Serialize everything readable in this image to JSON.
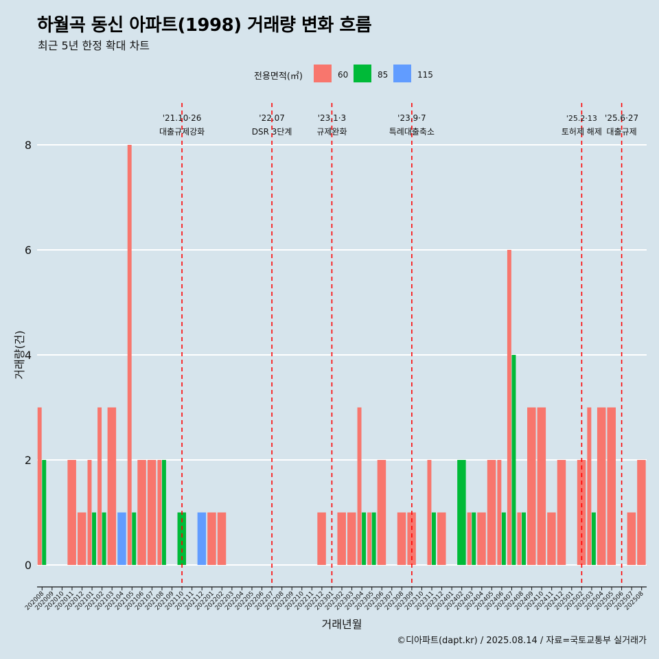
{
  "title": "하월곡 동신 아파트(1998) 거래량 변화 흐름",
  "subtitle": "최근 5년 한정 확대 차트",
  "caption": "©디아파트(dapt.kr) / 2025.08.14 / 자료=국토교통부 실거래가",
  "colors": {
    "background": "#d6e4ec",
    "s60": "#f8766d",
    "s85": "#00ba38",
    "s115": "#619cff",
    "vline": "#ff0000",
    "grid": "#ffffff"
  },
  "legend": {
    "title": "전용면적(㎡)",
    "items": [
      {
        "label": "60",
        "color": "#f8766d"
      },
      {
        "label": "85",
        "color": "#00ba38"
      },
      {
        "label": "115",
        "color": "#619cff"
      }
    ]
  },
  "chart_data": {
    "type": "bar",
    "title": "하월곡 동신 아파트(1998) 거래량 변화 흐름",
    "subtitle": "최근 5년 한정 확대 차트",
    "xlabel": "거래년월",
    "ylabel": "거래량(건)",
    "ylim": [
      0,
      8
    ],
    "yticks": [
      0,
      2,
      4,
      6,
      8
    ],
    "grid": true,
    "legend_position": "top",
    "categories": [
      "202008",
      "202009",
      "202010",
      "202011",
      "202012",
      "202101",
      "202102",
      "202103",
      "202104",
      "202105",
      "202106",
      "202107",
      "202108",
      "202109",
      "202110",
      "202111",
      "202112",
      "202201",
      "202202",
      "202203",
      "202204",
      "202205",
      "202206",
      "202207",
      "202208",
      "202209",
      "202210",
      "202211",
      "202212",
      "202301",
      "202302",
      "202303",
      "202304",
      "202305",
      "202306",
      "202307",
      "202308",
      "202309",
      "202310",
      "202311",
      "202312",
      "202401",
      "202402",
      "202403",
      "202404",
      "202405",
      "202406",
      "202407",
      "202408",
      "202409",
      "202410",
      "202411",
      "202412",
      "202501",
      "202502",
      "202503",
      "202504",
      "202505",
      "202506",
      "202507",
      "202508"
    ],
    "series": [
      {
        "name": "60",
        "values": [
          3,
          0,
          0,
          2,
          1,
          2,
          3,
          3,
          0,
          8,
          2,
          2,
          2,
          0,
          0,
          0,
          0,
          1,
          1,
          0,
          0,
          0,
          0,
          0,
          0,
          0,
          0,
          0,
          1,
          0,
          1,
          1,
          3,
          1,
          2,
          0,
          1,
          1,
          0,
          2,
          1,
          0,
          0,
          1,
          1,
          2,
          2,
          6,
          1,
          3,
          3,
          1,
          2,
          0,
          2,
          3,
          3,
          3,
          0,
          1,
          2
        ]
      },
      {
        "name": "85",
        "values": [
          2,
          0,
          0,
          0,
          0,
          1,
          1,
          0,
          0,
          1,
          0,
          0,
          2,
          0,
          1,
          0,
          0,
          0,
          0,
          0,
          0,
          0,
          0,
          0,
          0,
          0,
          0,
          0,
          0,
          0,
          0,
          0,
          1,
          1,
          0,
          0,
          0,
          0,
          0,
          1,
          0,
          0,
          2,
          1,
          0,
          0,
          1,
          4,
          1,
          0,
          0,
          0,
          0,
          0,
          0,
          1,
          0,
          0,
          0,
          0,
          0
        ]
      },
      {
        "name": "115",
        "values": [
          0,
          0,
          0,
          0,
          0,
          0,
          0,
          0,
          1,
          0,
          0,
          0,
          0,
          0,
          0,
          0,
          1,
          0,
          0,
          0,
          0,
          0,
          0,
          0,
          0,
          0,
          0,
          0,
          0,
          0,
          0,
          0,
          0,
          0,
          0,
          0,
          0,
          0,
          0,
          0,
          0,
          0,
          0,
          0,
          0,
          0,
          0,
          0,
          0,
          0,
          0,
          0,
          0,
          0,
          0,
          0,
          0,
          0,
          0,
          0,
          0
        ]
      }
    ],
    "annotations": [
      {
        "category": "202110",
        "date": "'21.10·26",
        "label": "대출규제강화"
      },
      {
        "category": "202207",
        "date": "'22.07",
        "label": "DSR 3단계"
      },
      {
        "category": "202301",
        "date": "'23.1·3",
        "label": "규제완화"
      },
      {
        "category": "202309",
        "date": "'23.9·7",
        "label": "특례대출축소"
      },
      {
        "category": "202502",
        "date": "'25.2·13",
        "label": "토허제 해제"
      },
      {
        "category": "202506",
        "date": "'25.6·27",
        "label": "대출규제"
      }
    ]
  }
}
